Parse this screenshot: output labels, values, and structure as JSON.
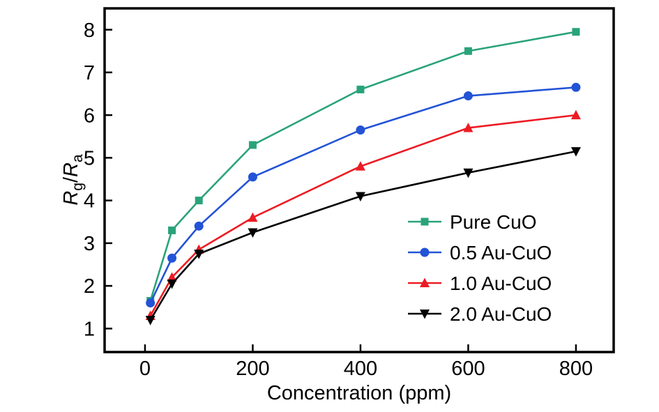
{
  "chart_data": {
    "type": "line",
    "title": "",
    "xlabel": "Concentration (ppm)",
    "ylabel": "Rg/Ra",
    "ylabel_parts": {
      "sym1": "R",
      "sub1": "g",
      "sep": "/",
      "sym2": "R",
      "sub2": "a"
    },
    "x": [
      10,
      50,
      100,
      200,
      400,
      600,
      800
    ],
    "xlim": [
      -75,
      870
    ],
    "ylim": [
      0.45,
      8.5
    ],
    "x_ticks": [
      0,
      200,
      400,
      600,
      800
    ],
    "y_ticks": [
      1,
      2,
      3,
      4,
      5,
      6,
      7,
      8
    ],
    "grid": false,
    "legend_position": "lower right",
    "frame_color": "#000000",
    "series": [
      {
        "name": "Pure CuO",
        "color": "#2aa37a",
        "marker": "square",
        "values": [
          1.65,
          3.3,
          4.0,
          5.3,
          6.6,
          7.5,
          7.95
        ]
      },
      {
        "name": "0.5 Au-CuO",
        "color": "#2353d6",
        "marker": "circle",
        "values": [
          1.6,
          2.65,
          3.4,
          4.55,
          5.65,
          6.45,
          6.65
        ]
      },
      {
        "name": "1.0 Au-CuO",
        "color": "#ec1c24",
        "marker": "triangle-up",
        "values": [
          1.3,
          2.2,
          2.85,
          3.6,
          4.8,
          5.7,
          6.0
        ]
      },
      {
        "name": "2.0 Au-CuO",
        "color": "#000000",
        "marker": "triangle-down",
        "values": [
          1.2,
          2.05,
          2.75,
          3.25,
          4.1,
          4.65,
          5.15
        ]
      }
    ]
  }
}
